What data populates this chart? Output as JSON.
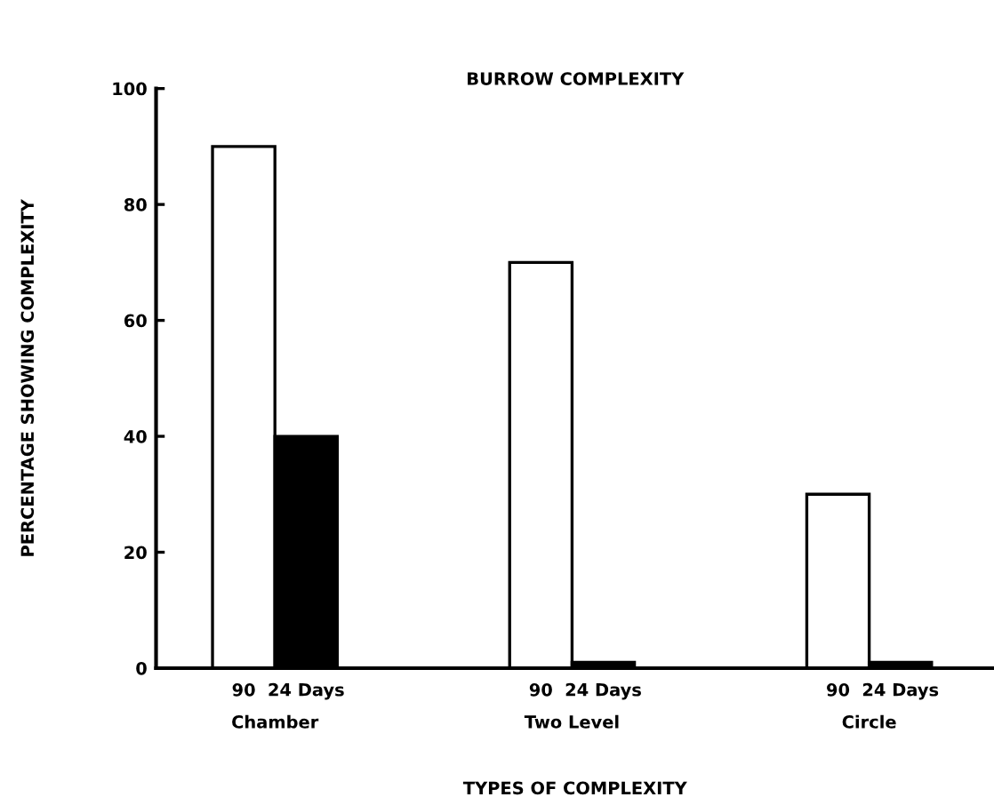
{
  "chart_data": {
    "type": "bar",
    "title": "BURROW COMPLEXITY",
    "xlabel": "TYPES OF COMPLEXITY",
    "ylabel": "PERCENTAGE SHOWING COMPLEXITY",
    "categories": [
      "Chamber",
      "Two Level",
      "Circle"
    ],
    "series": [
      {
        "name": "90",
        "color": "#ffffff",
        "values": [
          90,
          70,
          30
        ]
      },
      {
        "name": "24 Days",
        "color": "#000000",
        "values": [
          40,
          1,
          1
        ]
      }
    ],
    "ylim": [
      0,
      100
    ],
    "yticks": [
      0,
      20,
      40,
      60,
      80,
      100
    ],
    "grid": false,
    "legend": false
  }
}
